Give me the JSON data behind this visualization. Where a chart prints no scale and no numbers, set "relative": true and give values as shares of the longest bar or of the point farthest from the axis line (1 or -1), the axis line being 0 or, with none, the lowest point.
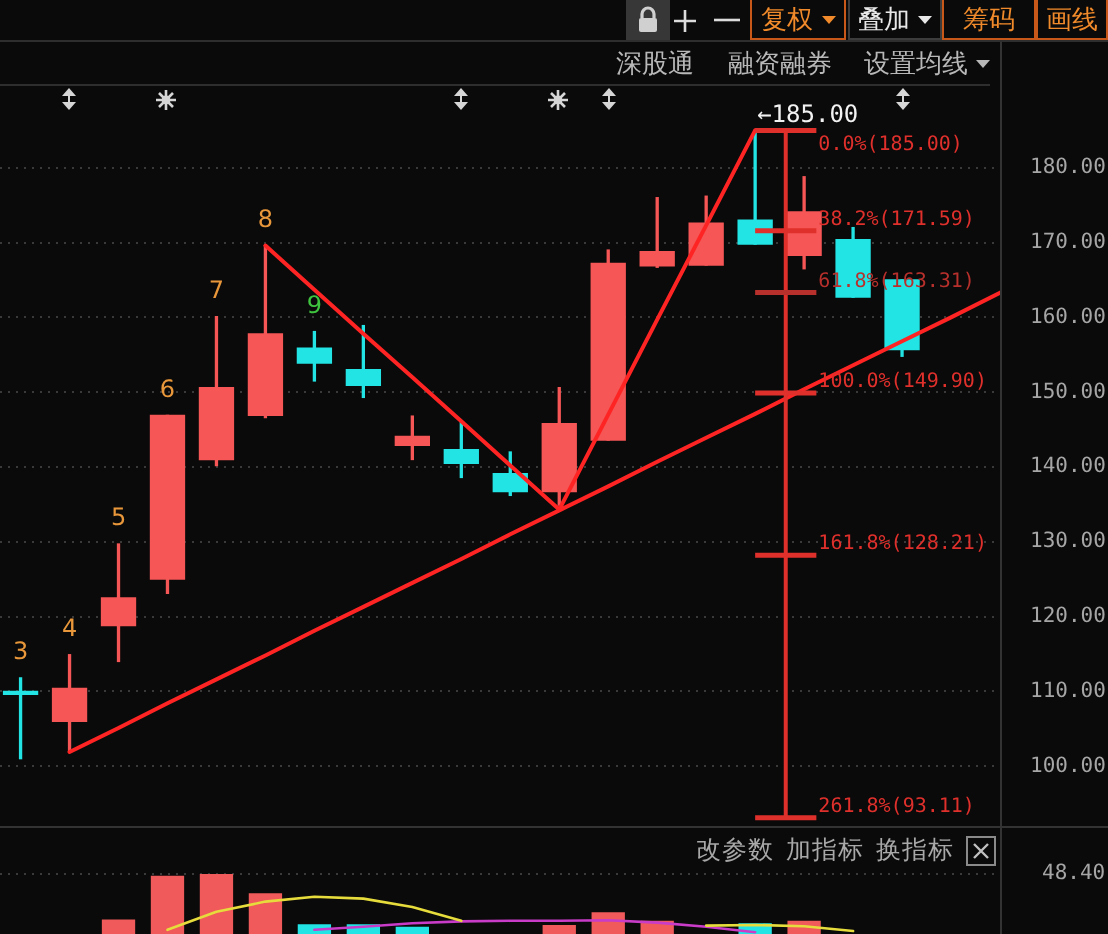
{
  "chart_data": [
    {
      "type": "candlestick",
      "categories": [
        null,
        null,
        null,
        null,
        null,
        null,
        null,
        null,
        null,
        null,
        null,
        null,
        null,
        null,
        null,
        null,
        null,
        null,
        null,
        null,
        null
      ],
      "ohlc": [
        [
          110.0,
          111.8,
          101.0,
          109.6
        ],
        [
          106.0,
          114.9,
          101.9,
          110.4
        ],
        [
          118.8,
          129.7,
          114.0,
          122.5
        ],
        [
          125.0,
          146.9,
          123.1,
          146.9
        ],
        [
          141.0,
          160.1,
          140.2,
          150.6
        ],
        [
          146.9,
          169.6,
          146.6,
          157.8
        ],
        [
          155.9,
          158.1,
          151.5,
          153.9
        ],
        [
          153.0,
          158.9,
          149.3,
          150.9
        ],
        [
          142.9,
          146.8,
          141.0,
          144.1
        ],
        [
          142.3,
          146.0,
          138.6,
          140.5
        ],
        [
          139.1,
          142.0,
          136.2,
          136.7
        ],
        [
          136.7,
          150.6,
          134.9,
          145.8
        ],
        [
          143.6,
          169.0,
          143.6,
          167.2
        ],
        [
          166.9,
          176.0,
          166.7,
          168.8
        ],
        [
          167.0,
          176.2,
          167.0,
          172.6
        ],
        [
          173.0,
          185.0,
          169.8,
          169.8
        ],
        [
          168.3,
          178.8,
          166.5,
          174.1
        ],
        [
          170.4,
          172.0,
          162.7,
          162.7
        ],
        [
          165.0,
          165.0,
          154.8,
          155.7
        ],
        null,
        null
      ],
      "colors": [
        "#22e4e4",
        "#f65656",
        "#f65656",
        "#f65656",
        "#f65656",
        "#f65656",
        "#22e4e4",
        "#22e4e4",
        "#f65656",
        "#22e4e4",
        "#22e4e4",
        "#f65656",
        "#f65656",
        "#f65656",
        "#f65656",
        "#22e4e4",
        "#f65656",
        "#22e4e4",
        "#22e4e4",
        null,
        null
      ],
      "value_labels": [
        "3",
        "4",
        "5",
        "6",
        "7",
        "8",
        "9",
        null,
        null,
        null,
        null,
        null,
        null,
        null,
        null,
        null,
        null,
        null,
        null,
        null,
        null
      ],
      "series": [
        {
          "type": "line",
          "color": "#ff2424",
          "values": [
            null,
            101.9,
            105.1,
            108.4,
            111.6,
            114.8,
            118.1,
            121.3,
            124.5,
            127.7,
            131.0,
            134.2,
            137.4,
            140.7,
            143.9,
            147.1,
            150.4,
            153.6,
            156.8,
            160.0,
            163.3
          ]
        },
        {
          "type": "line",
          "color": "#ff2424",
          "values": [
            null,
            null,
            null,
            null,
            null,
            169.6,
            163.7,
            157.8,
            152.0,
            146.1,
            140.2,
            134.3,
            147.0,
            159.7,
            172.3,
            185.0,
            null,
            null,
            null,
            null,
            null
          ]
        }
      ],
      "ylim": [
        92,
        191.2
      ],
      "yticks": [
        {
          "value": 100,
          "label": "100.00"
        },
        {
          "value": 110,
          "label": "110.00"
        },
        {
          "value": 120,
          "label": "120.00"
        },
        {
          "value": 130,
          "label": "130.00"
        },
        {
          "value": 140,
          "label": "140.00"
        },
        {
          "value": 150,
          "label": "150.00"
        },
        {
          "value": 160,
          "label": "160.00"
        },
        {
          "value": 170,
          "label": "170.00"
        },
        {
          "value": 180,
          "label": "180.00"
        }
      ],
      "grid": "y",
      "tick_labels": "y",
      "ref_lines": [
        {
          "axis": "y",
          "value": 185.0,
          "label": "0.0%(185.00)",
          "color": "#e0302c"
        },
        {
          "axis": "y",
          "value": 171.59,
          "label": "38.2%(171.59)",
          "color": "#e0302c"
        },
        {
          "axis": "y",
          "value": 163.31,
          "label": "61.8%(163.31)",
          "color": "#b8302c"
        },
        {
          "axis": "y",
          "value": 149.9,
          "label": "100.0%(149.90)",
          "color": "#e0302c"
        },
        {
          "axis": "y",
          "value": 128.21,
          "label": "161.8%(128.21)",
          "color": "#e0302c"
        },
        {
          "axis": "y",
          "value": 93.11,
          "label": "261.8%(93.11)",
          "color": "#e0302c"
        }
      ],
      "annotations": [
        "复权",
        "叠加",
        "筹码",
        "画线",
        "深股通",
        "融资融券",
        "设置均线",
        "←185.00"
      ]
    },
    {
      "type": "bar",
      "relative": true,
      "categories": [
        null,
        null,
        null,
        null,
        null,
        null,
        null,
        null,
        null,
        null,
        null,
        null,
        null,
        null,
        null,
        null,
        null,
        null,
        null,
        null,
        null
      ],
      "series": [
        {
          "type": "bar",
          "colors": [
            null,
            null,
            "#f05a5a",
            "#f05a5a",
            "#f05a5a",
            "#f05a5a",
            "#22e4e4",
            "#22e4e4",
            "#22e4e4",
            null,
            null,
            "#f05a5a",
            "#f05a5a",
            "#f05a5a",
            null,
            "#22e4e4",
            "#f05a5a",
            null,
            null,
            null,
            null
          ],
          "values": [
            null,
            null,
            0.23,
            0.96,
            1,
            0.67,
            0.15,
            0.15,
            0.11,
            null,
            null,
            0.14,
            0.35,
            0.21,
            null,
            0.17,
            0.21,
            null,
            null,
            null,
            null
          ]
        },
        {
          "type": "line",
          "color": "#e6dc3c",
          "values": [
            null,
            null,
            null,
            0.07,
            0.37,
            0.54,
            0.62,
            0.59,
            0.45,
            0.22,
            null,
            null,
            null,
            null,
            0.14,
            0.15,
            0.13,
            0.05,
            null,
            null,
            null
          ]
        },
        {
          "type": "line",
          "color": "#c83cc8",
          "values": [
            null,
            null,
            null,
            null,
            null,
            null,
            0.07,
            0.12,
            0.18,
            0.21,
            0.22,
            0.22,
            0.23,
            0.19,
            0.12,
            0.03,
            null,
            null,
            null,
            null,
            null
          ]
        }
      ],
      "tick_labels": false,
      "annotations": [
        "改参数",
        "加指标",
        "换指标",
        "48.40"
      ]
    }
  ]
}
